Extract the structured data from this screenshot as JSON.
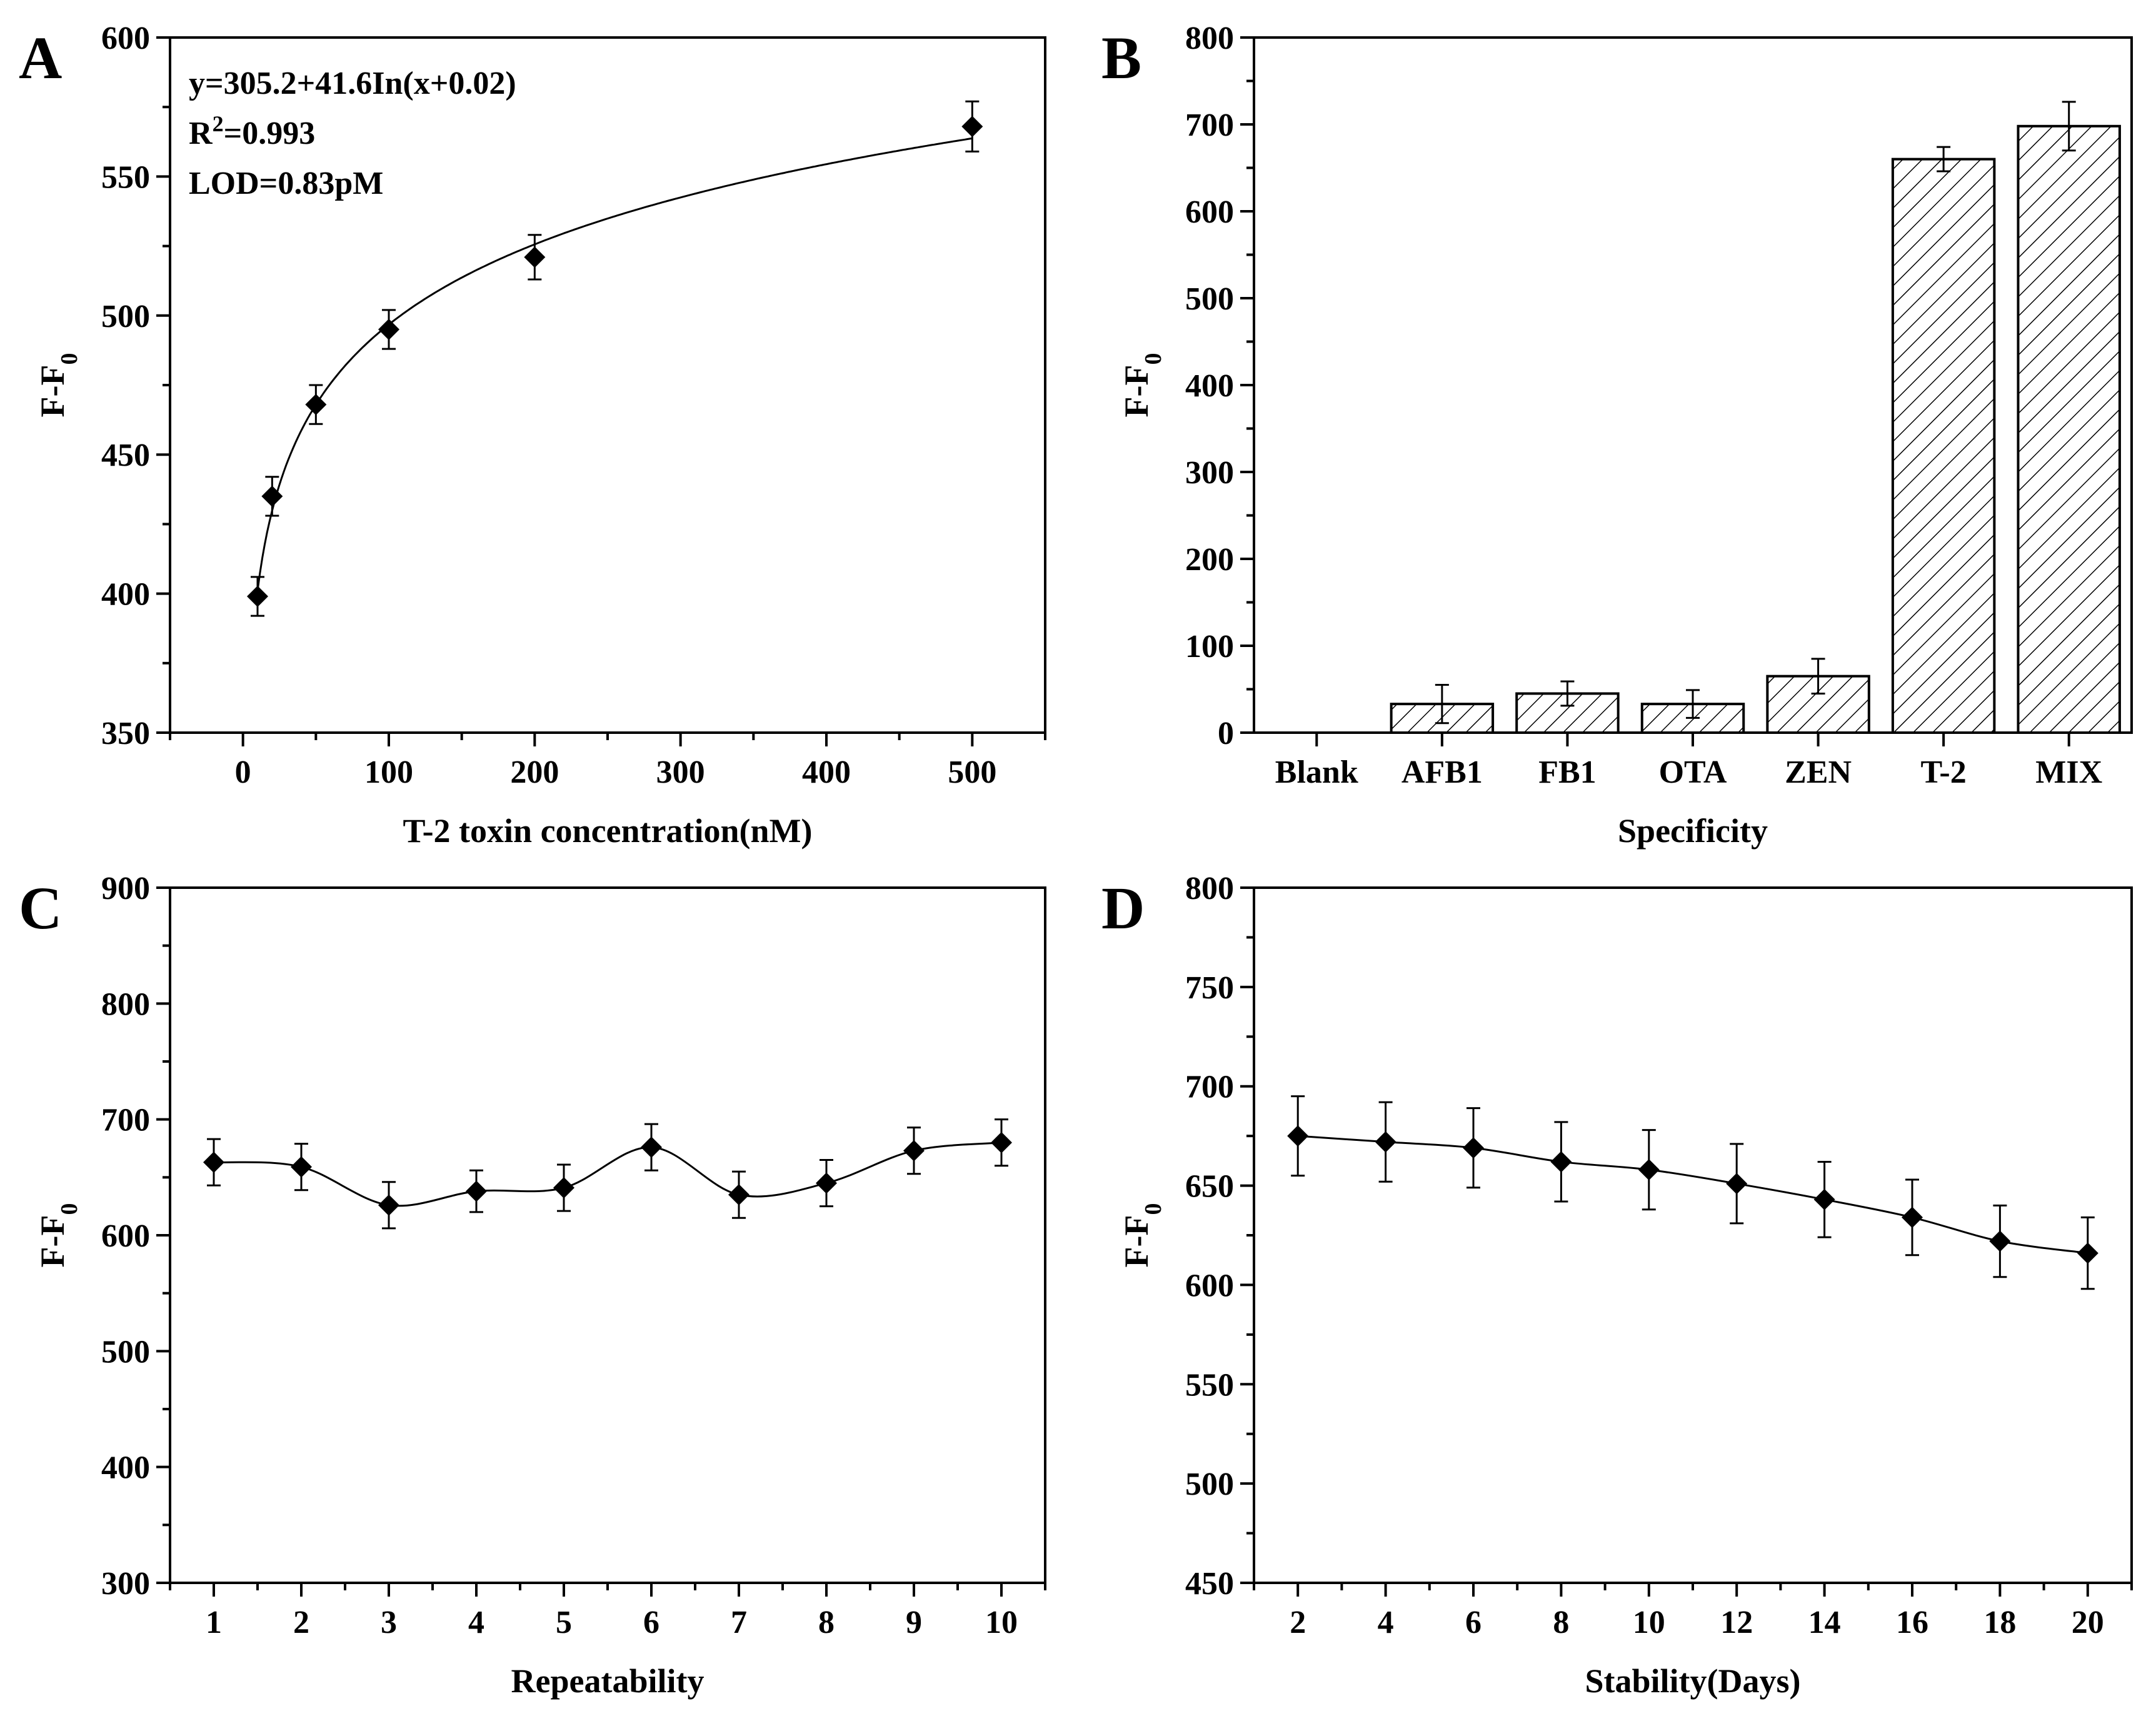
{
  "chart_data": [
    {
      "panel": "A",
      "type": "scatter",
      "xlabel": "T-2 toxin concentration(nM)",
      "ylabel": "F-F",
      "ylabel_sub": "0",
      "xlim": [
        -50,
        550
      ],
      "ylim": [
        350,
        600
      ],
      "xticks": [
        0,
        100,
        200,
        300,
        400,
        500
      ],
      "yticks": [
        350,
        400,
        450,
        500,
        550,
        600
      ],
      "x": [
        10,
        20,
        50,
        100,
        200,
        500
      ],
      "y": [
        399,
        435,
        468,
        495,
        521,
        568
      ],
      "yerr": [
        7,
        7,
        7,
        7,
        8,
        9
      ],
      "fit": {
        "a": 305.2,
        "b": 41.6,
        "c": 0.02
      },
      "annotations": {
        "equation": "y=305.2+41.6In(x+0.02)",
        "r2_prefix": "R",
        "r2_sup": "2",
        "r2_suffix": "=0.993",
        "lod": "LOD=0.83pM"
      }
    },
    {
      "panel": "B",
      "type": "bar",
      "xlabel": "Specificity",
      "ylabel": "F-F",
      "ylabel_sub": "0",
      "ylim": [
        0,
        800
      ],
      "yticks": [
        0,
        100,
        200,
        300,
        400,
        500,
        600,
        700,
        800
      ],
      "categories": [
        "Blank",
        "AFB1",
        "FB1",
        "OTA",
        "ZEN",
        "T-2",
        "MIX"
      ],
      "values": [
        0,
        33,
        45,
        33,
        65,
        660,
        698
      ],
      "yerr": [
        0,
        22,
        14,
        16,
        20,
        14,
        28
      ]
    },
    {
      "panel": "C",
      "type": "line",
      "xlabel": "Repeatability",
      "ylabel": "F-F",
      "ylabel_sub": "0",
      "xlim": [
        0.5,
        10.5
      ],
      "ylim": [
        300,
        900
      ],
      "xticks": [
        1,
        2,
        3,
        4,
        5,
        6,
        7,
        8,
        9,
        10
      ],
      "yticks": [
        300,
        400,
        500,
        600,
        700,
        800,
        900
      ],
      "x": [
        1,
        2,
        3,
        4,
        5,
        6,
        7,
        8,
        9,
        10
      ],
      "y": [
        663,
        659,
        626,
        638,
        641,
        676,
        635,
        645,
        673,
        680
      ],
      "yerr": [
        20,
        20,
        20,
        18,
        20,
        20,
        20,
        20,
        20,
        20
      ]
    },
    {
      "panel": "D",
      "type": "line",
      "xlabel": "Stability(Days)",
      "ylabel": "F-F",
      "ylabel_sub": "0",
      "xlim": [
        1,
        21
      ],
      "ylim": [
        450,
        800
      ],
      "xticks": [
        2,
        4,
        6,
        8,
        10,
        12,
        14,
        16,
        18,
        20
      ],
      "yticks": [
        450,
        500,
        550,
        600,
        650,
        700,
        750,
        800
      ],
      "x": [
        2,
        4,
        6,
        8,
        10,
        12,
        14,
        16,
        18,
        20
      ],
      "y": [
        675,
        672,
        669,
        662,
        658,
        651,
        643,
        634,
        622,
        616
      ],
      "yerr": [
        20,
        20,
        20,
        20,
        20,
        20,
        19,
        19,
        18,
        18
      ]
    }
  ]
}
